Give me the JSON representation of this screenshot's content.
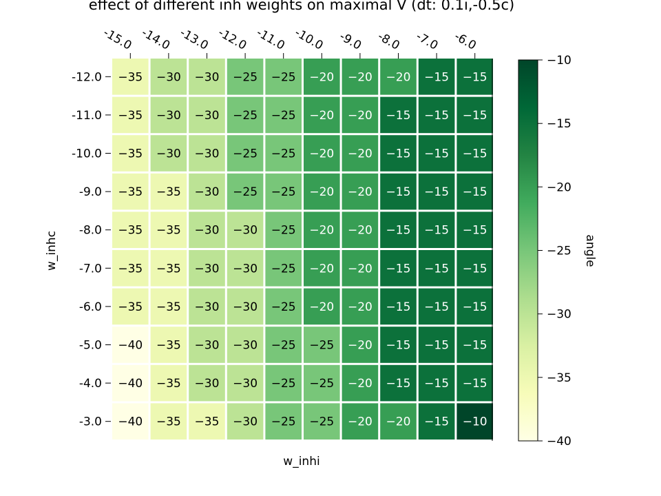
{
  "chart_data": {
    "type": "heatmap",
    "title": "effect of different inh weights on maximal V (dt: 0.1i,-0.5c)",
    "xlabel": "w_inhi",
    "ylabel": "w_inhc",
    "x_tick_labels": [
      "-15.0",
      "-14.0",
      "-13.0",
      "-12.0",
      "-11.0",
      "-10.0",
      "-9.0",
      "-8.0",
      "-7.0",
      "-6.0"
    ],
    "y_tick_labels": [
      "-12.0",
      "-11.0",
      "-10.0",
      "-9.0",
      "-8.0",
      "-7.0",
      "-6.0",
      "-5.0",
      "-4.0",
      "-3.0"
    ],
    "values": [
      [
        -35,
        -30,
        -30,
        -25,
        -25,
        -20,
        -20,
        -20,
        -15,
        -15
      ],
      [
        -35,
        -30,
        -30,
        -25,
        -25,
        -20,
        -20,
        -15,
        -15,
        -15
      ],
      [
        -35,
        -30,
        -30,
        -25,
        -25,
        -20,
        -20,
        -15,
        -15,
        -15
      ],
      [
        -35,
        -35,
        -30,
        -25,
        -25,
        -20,
        -20,
        -15,
        -15,
        -15
      ],
      [
        -35,
        -35,
        -30,
        -30,
        -25,
        -20,
        -20,
        -15,
        -15,
        -15
      ],
      [
        -35,
        -35,
        -30,
        -30,
        -25,
        -20,
        -20,
        -15,
        -15,
        -15
      ],
      [
        -35,
        -35,
        -30,
        -30,
        -25,
        -20,
        -20,
        -15,
        -15,
        -15
      ],
      [
        -40,
        -35,
        -30,
        -30,
        -25,
        -25,
        -20,
        -15,
        -15,
        -15
      ],
      [
        -40,
        -35,
        -30,
        -30,
        -25,
        -25,
        -20,
        -15,
        -15,
        -15
      ],
      [
        -40,
        -35,
        -35,
        -30,
        -25,
        -25,
        -20,
        -20,
        -15,
        -10
      ]
    ],
    "value_labels": [
      [
        "−35",
        "−30",
        "−30",
        "−25",
        "−25",
        "−20",
        "−20",
        "−20",
        "−15",
        "−15"
      ],
      [
        "−35",
        "−30",
        "−30",
        "−25",
        "−25",
        "−20",
        "−20",
        "−15",
        "−15",
        "−15"
      ],
      [
        "−35",
        "−30",
        "−30",
        "−25",
        "−25",
        "−20",
        "−20",
        "−15",
        "−15",
        "−15"
      ],
      [
        "−35",
        "−35",
        "−30",
        "−25",
        "−25",
        "−20",
        "−20",
        "−15",
        "−15",
        "−15"
      ],
      [
        "−35",
        "−35",
        "−30",
        "−30",
        "−25",
        "−20",
        "−20",
        "−15",
        "−15",
        "−15"
      ],
      [
        "−35",
        "−35",
        "−30",
        "−30",
        "−25",
        "−20",
        "−20",
        "−15",
        "−15",
        "−15"
      ],
      [
        "−35",
        "−35",
        "−30",
        "−30",
        "−25",
        "−20",
        "−20",
        "−15",
        "−15",
        "−15"
      ],
      [
        "−40",
        "−35",
        "−30",
        "−30",
        "−25",
        "−25",
        "−20",
        "−15",
        "−15",
        "−15"
      ],
      [
        "−40",
        "−35",
        "−30",
        "−30",
        "−25",
        "−25",
        "−20",
        "−15",
        "−15",
        "−15"
      ],
      [
        "−40",
        "−35",
        "−35",
        "−30",
        "−25",
        "−25",
        "−20",
        "−20",
        "−15",
        "−10"
      ]
    ],
    "colormap": "YlGn",
    "vmin": -40,
    "vmax": -10,
    "colorbar": {
      "label": "angle",
      "tick_values": [
        -10,
        -15,
        -20,
        -25,
        -30,
        -35,
        -40
      ],
      "tick_labels": [
        "−10",
        "−15",
        "−20",
        "−25",
        "−30",
        "−35",
        "−40"
      ]
    },
    "text_colors": {
      "light": "#ffffff",
      "dark": "#000000"
    },
    "grid": false
  }
}
